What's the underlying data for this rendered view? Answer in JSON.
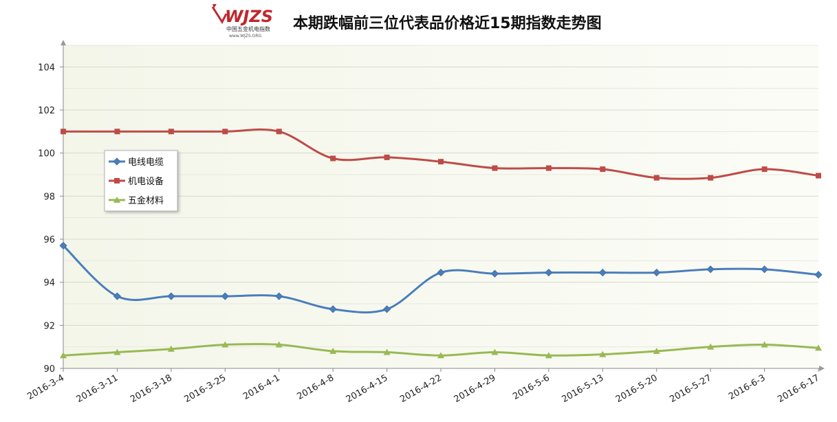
{
  "header": {
    "title": "本期跌幅前三位代表品价格近15期指数走势图",
    "logo_text": "WJZS",
    "logo_sub": "中国五金机电指数",
    "logo_url_text": "www.WJZS.ORG"
  },
  "chart_data": {
    "type": "line",
    "title": "本期跌幅前三位代表品价格近15期指数走势图",
    "xlabel": "",
    "ylabel": "",
    "categories": [
      "2016-3-4",
      "2016-3-11",
      "2016-3-18",
      "2016-3-25",
      "2016-4-1",
      "2016-4-8",
      "2016-4-15",
      "2016-4-22",
      "2016-4-29",
      "2016-5-6",
      "2016-5-13",
      "2016-5-20",
      "2016-5-27",
      "2016-6-3",
      "2016-6-17"
    ],
    "ylim": [
      90,
      105
    ],
    "yticks": [
      90,
      92,
      94,
      96,
      98,
      100,
      102,
      104
    ],
    "grid": true,
    "legend": "left",
    "series": [
      {
        "name": "电线电缆",
        "color": "#4a7ebb",
        "marker": "diamond",
        "values": [
          95.7,
          93.35,
          93.35,
          93.35,
          93.35,
          92.75,
          92.75,
          94.45,
          94.4,
          94.45,
          94.45,
          94.45,
          94.6,
          94.6,
          94.35
        ]
      },
      {
        "name": "机电设备",
        "color": "#be4b48",
        "marker": "square",
        "values": [
          101.0,
          101.0,
          101.0,
          101.0,
          101.0,
          99.75,
          99.8,
          99.6,
          99.3,
          99.3,
          99.25,
          98.85,
          98.85,
          99.25,
          98.95
        ]
      },
      {
        "name": "五金材料",
        "color": "#98b954",
        "marker": "triangle",
        "values": [
          90.6,
          90.75,
          90.9,
          91.1,
          91.1,
          90.8,
          90.75,
          90.6,
          90.75,
          90.6,
          90.65,
          90.8,
          91.0,
          91.1,
          90.95
        ]
      }
    ]
  }
}
